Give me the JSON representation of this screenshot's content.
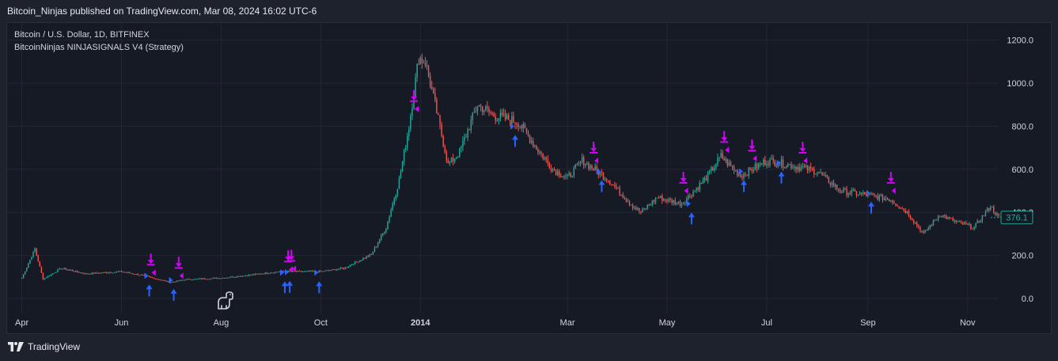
{
  "header": {
    "published_by": "Bitcoin_Ninjas published on TradingView.com, Mar 08, 2024 16:02 UTC-6"
  },
  "legend": {
    "symbol_line": "Bitcoin / U.S. Dollar, 1D, BITFINEX",
    "strategy_line": "BitcoinNinjas NINJASIGNALS V4 (Strategy)"
  },
  "footer": {
    "brand": "TradingView",
    "logo_icon": "tradingview-logo-icon"
  },
  "colors": {
    "up": "#26a69a",
    "down": "#ef5350",
    "buy_signal": "#2962ff",
    "sell_signal": "#d500f9",
    "price_tag": "#26a69a",
    "grid": "#242733"
  },
  "chart_data": {
    "type": "candlestick",
    "symbol": "Bitcoin / U.S. Dollar, 1D, BITFINEX",
    "ylim": [
      -70,
      1280
    ],
    "yticks": [
      {
        "value": 0,
        "label": "0.0"
      },
      {
        "value": 200,
        "label": "200.0"
      },
      {
        "value": 400,
        "label": "400.0"
      },
      {
        "value": 600,
        "label": "600.0"
      },
      {
        "value": 800,
        "label": "800.0"
      },
      {
        "value": 1000,
        "label": "1000.0"
      },
      {
        "value": 1200,
        "label": "1200.0"
      }
    ],
    "xlim": [
      "2013-03-23",
      "2013-11-20"
    ],
    "xticks": [
      {
        "date": "2013-04-01",
        "label": "Apr",
        "bold": false
      },
      {
        "date": "2013-06-01",
        "label": "Jun",
        "bold": false
      },
      {
        "date": "2013-08-01",
        "label": "Aug",
        "bold": false
      },
      {
        "date": "2013-10-01",
        "label": "Oct",
        "bold": false
      },
      {
        "date": "2013-12-01",
        "label": "2014",
        "bold": true
      },
      {
        "date": "2014-03-01",
        "label": "Mar",
        "bold": false
      },
      {
        "date": "2014-05-01",
        "label": "May",
        "bold": false
      },
      {
        "date": "2014-07-01",
        "label": "Jul",
        "bold": false
      },
      {
        "date": "2014-09-01",
        "label": "Sep",
        "bold": false
      },
      {
        "date": "2014-11-01",
        "label": "Nov",
        "bold": false
      }
    ],
    "last_price": {
      "value": 376.1,
      "label": "376.1"
    },
    "price_path": [
      [
        "2013-04-01",
        95
      ],
      [
        "2013-04-09",
        230
      ],
      [
        "2013-04-14",
        90
      ],
      [
        "2013-04-25",
        140
      ],
      [
        "2013-05-10",
        115
      ],
      [
        "2013-06-01",
        125
      ],
      [
        "2013-06-15",
        105
      ],
      [
        "2013-07-01",
        75
      ],
      [
        "2013-07-10",
        88
      ],
      [
        "2013-08-01",
        95
      ],
      [
        "2013-08-20",
        110
      ],
      [
        "2013-09-05",
        125
      ],
      [
        "2013-10-01",
        125
      ],
      [
        "2013-10-15",
        140
      ],
      [
        "2013-11-01",
        205
      ],
      [
        "2013-11-10",
        330
      ],
      [
        "2013-11-18",
        550
      ],
      [
        "2013-11-24",
        800
      ],
      [
        "2013-11-30",
        1120
      ],
      [
        "2013-12-04",
        1100
      ],
      [
        "2013-12-10",
        900
      ],
      [
        "2013-12-18",
        620
      ],
      [
        "2013-12-25",
        680
      ],
      [
        "2014-01-05",
        900
      ],
      [
        "2014-01-15",
        850
      ],
      [
        "2014-01-30",
        820
      ],
      [
        "2014-02-10",
        700
      ],
      [
        "2014-02-20",
        600
      ],
      [
        "2014-03-01",
        560
      ],
      [
        "2014-03-10",
        640
      ],
      [
        "2014-03-25",
        560
      ],
      [
        "2014-04-10",
        430
      ],
      [
        "2014-04-15",
        400
      ],
      [
        "2014-04-25",
        470
      ],
      [
        "2014-05-10",
        440
      ],
      [
        "2014-05-25",
        560
      ],
      [
        "2014-06-03",
        660
      ],
      [
        "2014-06-15",
        570
      ],
      [
        "2014-07-01",
        640
      ],
      [
        "2014-07-15",
        620
      ],
      [
        "2014-08-01",
        590
      ],
      [
        "2014-08-15",
        500
      ],
      [
        "2014-09-01",
        480
      ],
      [
        "2014-09-15",
        460
      ],
      [
        "2014-09-25",
        400
      ],
      [
        "2014-10-05",
        300
      ],
      [
        "2014-10-15",
        390
      ],
      [
        "2014-10-25",
        355
      ],
      [
        "2014-11-05",
        330
      ],
      [
        "2014-11-15",
        430
      ],
      [
        "2014-11-20",
        376
      ]
    ],
    "sell_signals": [
      {
        "date": "2013-06-19",
        "price": 120
      },
      {
        "date": "2013-07-06",
        "price": 105
      },
      {
        "date": "2013-09-11",
        "price": 135
      },
      {
        "date": "2013-09-13",
        "price": 138
      },
      {
        "date": "2013-11-27",
        "price": 880
      },
      {
        "date": "2014-03-17",
        "price": 640
      },
      {
        "date": "2014-05-11",
        "price": 500
      },
      {
        "date": "2014-06-05",
        "price": 690
      },
      {
        "date": "2014-06-22",
        "price": 650
      },
      {
        "date": "2014-07-23",
        "price": 640
      },
      {
        "date": "2014-09-15",
        "price": 500
      }
    ],
    "buy_signals": [
      {
        "date": "2013-06-18",
        "price": 105
      },
      {
        "date": "2013-07-03",
        "price": 85
      },
      {
        "date": "2013-09-09",
        "price": 120
      },
      {
        "date": "2013-09-12",
        "price": 122
      },
      {
        "date": "2013-09-30",
        "price": 120
      },
      {
        "date": "2014-01-28",
        "price": 800
      },
      {
        "date": "2014-03-22",
        "price": 590
      },
      {
        "date": "2014-05-16",
        "price": 440
      },
      {
        "date": "2014-06-17",
        "price": 590
      },
      {
        "date": "2014-07-10",
        "price": 630
      },
      {
        "date": "2014-09-03",
        "price": 490
      }
    ]
  }
}
